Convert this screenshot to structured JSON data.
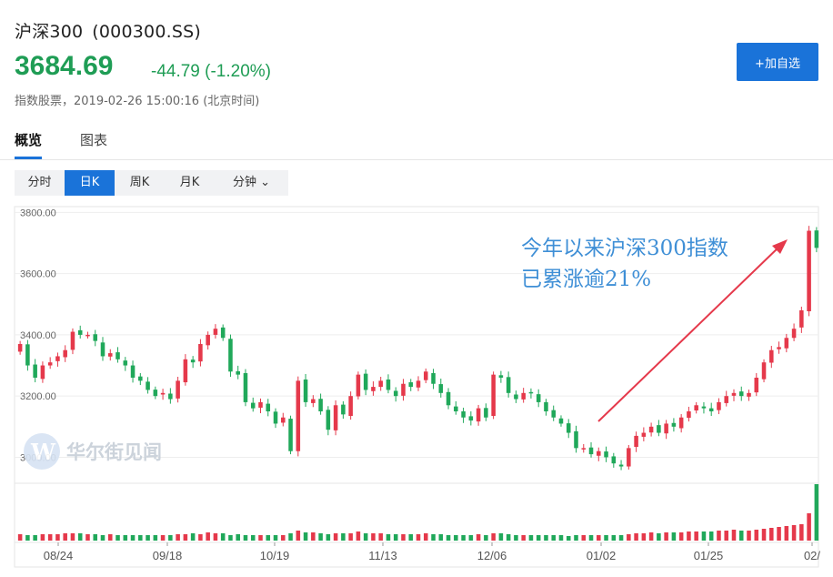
{
  "header": {
    "name": "沪深300",
    "code": "(000300.SS)",
    "price": "3684.69",
    "change": "-44.79 (-1.20%)",
    "meta": "指数股票，2019-02-26 15:00:16 (北京时间)",
    "add_button": "+加自选"
  },
  "tabs": [
    {
      "label": "概览",
      "active": true
    },
    {
      "label": "图表",
      "active": false
    }
  ],
  "periods": [
    {
      "label": "分时",
      "active": false
    },
    {
      "label": "日K",
      "active": true
    },
    {
      "label": "周K",
      "active": false
    },
    {
      "label": "月K",
      "active": false
    },
    {
      "label": "分钟 ⌄",
      "active": false
    }
  ],
  "watermark": "华尔街见闻",
  "colors": {
    "up": "#e5394b",
    "down": "#20a85a",
    "accent": "#1a73d9",
    "annotation": "#3f8fd6"
  },
  "chart_data": {
    "type": "candlestick",
    "y_ticks": [
      "3800.00",
      "3600.00",
      "3400.00",
      "3200.00",
      "3000.00"
    ],
    "y_tick_values": [
      3800,
      3600,
      3400,
      3200,
      3000
    ],
    "x_ticks": [
      "08/24",
      "09/18",
      "10/19",
      "11/13",
      "12/06",
      "01/02",
      "01/25",
      "02/"
    ],
    "ylim": [
      2930,
      3810
    ],
    "annotation": [
      "今年以来沪深300指数",
      "已累涨逾21%"
    ],
    "closes": [
      3370,
      3300,
      3260,
      3300,
      3310,
      3330,
      3350,
      3410,
      3400,
      3400,
      3380,
      3330,
      3340,
      3320,
      3300,
      3260,
      3250,
      3220,
      3200,
      3210,
      3190,
      3250,
      3320,
      3310,
      3370,
      3400,
      3420,
      3390,
      3280,
      3270,
      3180,
      3160,
      3180,
      3150,
      3110,
      3130,
      3020,
      3250,
      3180,
      3190,
      3150,
      3090,
      3170,
      3140,
      3200,
      3270,
      3220,
      3230,
      3250,
      3220,
      3200,
      3240,
      3230,
      3250,
      3280,
      3240,
      3210,
      3170,
      3150,
      3130,
      3120,
      3160,
      3130,
      3270,
      3260,
      3210,
      3190,
      3210,
      3210,
      3180,
      3150,
      3130,
      3110,
      3080,
      3030,
      3030,
      3010,
      3020,
      3000,
      2980,
      2970,
      3030,
      3070,
      3080,
      3100,
      3080,
      3110,
      3100,
      3130,
      3150,
      3170,
      3160,
      3150,
      3180,
      3200,
      3210,
      3200,
      3210,
      3260,
      3310,
      3350,
      3360,
      3390,
      3420,
      3480,
      3740,
      3684
    ],
    "volumes": [
      7,
      6,
      6,
      7,
      7,
      7,
      8,
      8,
      8,
      7,
      7,
      6,
      7,
      6,
      6,
      6,
      6,
      6,
      6,
      6,
      6,
      7,
      7,
      8,
      7,
      9,
      8,
      8,
      6,
      7,
      6,
      6,
      6,
      6,
      6,
      6,
      8,
      11,
      9,
      9,
      8,
      7,
      8,
      8,
      8,
      10,
      8,
      8,
      8,
      7,
      7,
      7,
      7,
      7,
      8,
      7,
      7,
      6,
      6,
      6,
      6,
      7,
      6,
      8,
      8,
      7,
      6,
      6,
      6,
      6,
      6,
      6,
      6,
      5,
      6,
      6,
      6,
      6,
      6,
      6,
      6,
      7,
      8,
      8,
      9,
      8,
      9,
      9,
      9,
      10,
      10,
      10,
      10,
      11,
      11,
      12,
      11,
      11,
      12,
      13,
      14,
      15,
      16,
      17,
      18,
      30,
      62
    ]
  }
}
